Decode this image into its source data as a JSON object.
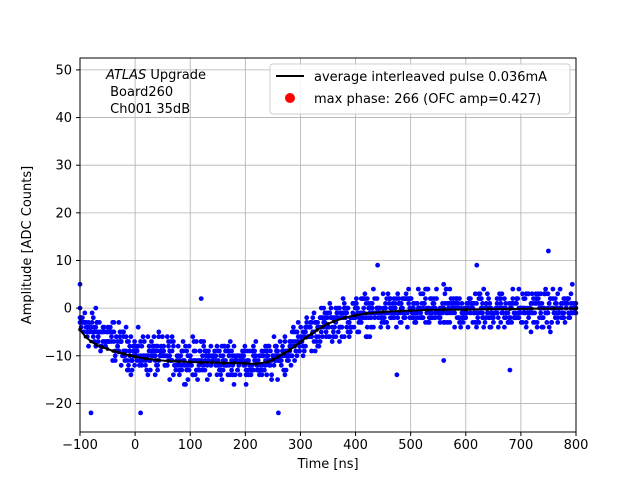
{
  "chart_data": {
    "type": "scatter",
    "xlabel": "Time [ns]",
    "ylabel": "Amplitude [ADC Counts]",
    "xlim": [
      -100,
      800
    ],
    "ylim": [
      -26,
      52.5
    ],
    "xticks": [
      -100,
      0,
      100,
      200,
      300,
      400,
      500,
      600,
      700,
      800
    ],
    "yticks": [
      -20,
      -10,
      0,
      10,
      20,
      30,
      40,
      50
    ],
    "xtick_labels": [
      "−100",
      "0",
      "100",
      "200",
      "300",
      "400",
      "500",
      "600",
      "700",
      "800"
    ],
    "ytick_labels": [
      "−20",
      "−10",
      "0",
      "10",
      "20",
      "30",
      "40",
      "50"
    ],
    "grid": true,
    "legend_position": "top-right",
    "annotation": {
      "italic": "ATLAS",
      "rest": " Upgrade",
      "line2": " Board260",
      "line3": " Ch001 35dB"
    },
    "series": [
      {
        "name": "average interleaved pulse 0.036mA",
        "kind": "line",
        "color": "#000000",
        "x": [
          -100,
          -90,
          -80,
          -70,
          -60,
          -50,
          -40,
          -30,
          -20,
          -10,
          0,
          20,
          40,
          60,
          80,
          100,
          120,
          140,
          160,
          180,
          200,
          220,
          240,
          250,
          260,
          270,
          280,
          290,
          300,
          310,
          320,
          330,
          340,
          350,
          360,
          380,
          400,
          420,
          450,
          480,
          500,
          530,
          560,
          600,
          640,
          680,
          720,
          760,
          800
        ],
        "y": [
          -4.5,
          -6,
          -7,
          -7.7,
          -8.2,
          -8.6,
          -9,
          -9.3,
          -9.6,
          -9.9,
          -10.2,
          -10.6,
          -10.9,
          -11.1,
          -11.2,
          -11.3,
          -11.4,
          -11.4,
          -11.5,
          -11.5,
          -11.6,
          -11.7,
          -11.3,
          -10.8,
          -10.2,
          -9.5,
          -8.8,
          -8,
          -7.1,
          -6.2,
          -5.4,
          -4.6,
          -3.9,
          -3.3,
          -2.8,
          -2,
          -1.5,
          -1.1,
          -0.8,
          -0.6,
          -0.5,
          -0.4,
          -0.3,
          -0.3,
          -0.2,
          -0.2,
          -0.1,
          -0.1,
          -0.1
        ]
      },
      {
        "name": "max phase: 266 (OFC amp=0.427)",
        "kind": "point",
        "color": "#ff0000"
      },
      {
        "name": "",
        "kind": "scatter",
        "color": "#0000ff",
        "band_width": 12,
        "band_center": {
          "x": [
            -100,
            0,
            100,
            200,
            240,
            270,
            300,
            340,
            400,
            450,
            500,
            600,
            700,
            800
          ],
          "y": [
            -3,
            -9.5,
            -10.8,
            -11,
            -11.5,
            -9.5,
            -6.5,
            -3.5,
            -1.5,
            -0.8,
            -0.5,
            -0.4,
            -0.3,
            -0.2
          ]
        },
        "outliers": [
          {
            "x": 750,
            "y": 12
          },
          {
            "x": 475,
            "y": -14
          },
          {
            "x": 120,
            "y": 2
          },
          {
            "x": -80,
            "y": -22
          },
          {
            "x": -100,
            "y": 5
          },
          {
            "x": 620,
            "y": 9
          },
          {
            "x": 440,
            "y": 9
          },
          {
            "x": 260,
            "y": -22
          },
          {
            "x": 10,
            "y": -22
          },
          {
            "x": 680,
            "y": -13
          },
          {
            "x": 560,
            "y": -11
          }
        ]
      }
    ]
  }
}
